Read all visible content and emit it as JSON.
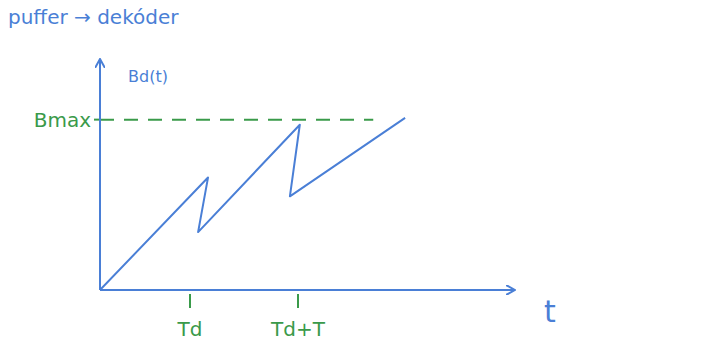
{
  "chart_data": {
    "type": "line",
    "title": "puffer → dekóder",
    "y_label": "Bd(t)",
    "x_label": "t",
    "x": [
      0,
      1.2,
      1.09,
      2.22,
      2.11,
      3.39
    ],
    "values": [
      0,
      0.66,
      0.34,
      0.97,
      0.55,
      1.01
    ],
    "color": "#4a7fd6",
    "xlim": [
      0,
      4.6
    ],
    "ylim": [
      0,
      1.35
    ],
    "xticks": [
      {
        "value": 1,
        "label": "Td"
      },
      {
        "value": 2.2,
        "label": "Td+T"
      }
    ],
    "yticks": [
      {
        "value": 1,
        "label": "Bmax"
      }
    ],
    "grid": "y"
  }
}
